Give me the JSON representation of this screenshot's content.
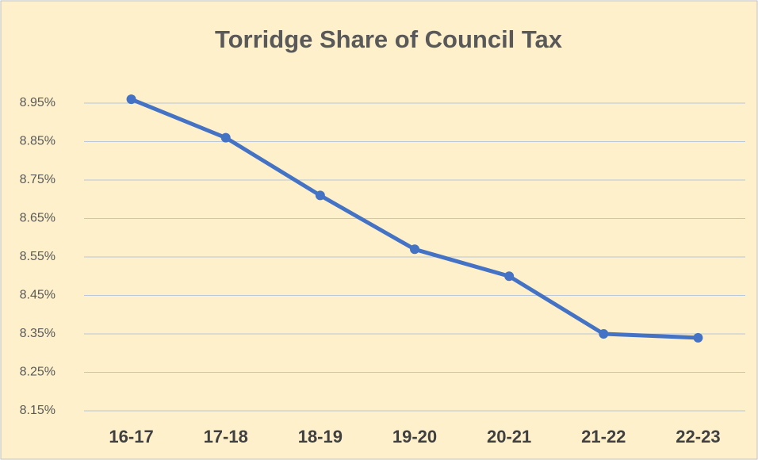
{
  "chart_data": {
    "type": "line",
    "title": "Torridge Share of Council Tax",
    "categories": [
      "16-17",
      "17-18",
      "18-19",
      "19-20",
      "20-21",
      "21-22",
      "22-23"
    ],
    "series": [
      {
        "name": "Torridge Share",
        "color": "#4472c4",
        "values": [
          8.96,
          8.86,
          8.71,
          8.57,
          8.5,
          8.35,
          8.34
        ]
      }
    ],
    "ylim": [
      8.15,
      8.95
    ],
    "yticks": [
      {
        "value": 8.15,
        "label": "8.15%"
      },
      {
        "value": 8.25,
        "label": "8.25%"
      },
      {
        "value": 8.35,
        "label": "8.35%"
      },
      {
        "value": 8.45,
        "label": "8.45%"
      },
      {
        "value": 8.55,
        "label": "8.55%"
      },
      {
        "value": 8.65,
        "label": "8.65%"
      },
      {
        "value": 8.75,
        "label": "8.75%"
      },
      {
        "value": 8.85,
        "label": "8.85%"
      },
      {
        "value": 8.95,
        "label": "8.95%"
      }
    ],
    "grid": true
  }
}
